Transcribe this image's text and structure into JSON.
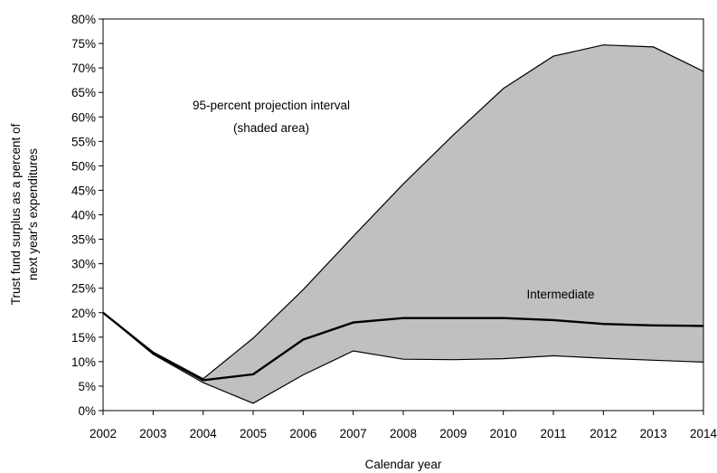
{
  "chart_data": {
    "type": "area",
    "title": "",
    "xlabel": "Calendar year",
    "ylabel_line1": "Trust fund surplus as a percent of",
    "ylabel_line2": "next year's expenditures",
    "x": [
      2002,
      2003,
      2004,
      2005,
      2006,
      2007,
      2008,
      2009,
      2010,
      2011,
      2012,
      2013,
      2014
    ],
    "xlim": [
      2002,
      2014
    ],
    "ylim": [
      0,
      80
    ],
    "y_ticks": [
      0,
      5,
      10,
      15,
      20,
      25,
      30,
      35,
      40,
      45,
      50,
      55,
      60,
      65,
      70,
      75,
      80
    ],
    "y_tick_suffix": "%",
    "grid": false,
    "interval_fill_color": "#c0c0c0",
    "plot_background": "#ffffff",
    "line_color": "#000000",
    "series": [
      {
        "role": "upper-bound",
        "values": [
          20,
          12,
          6.5,
          14.8,
          24.7,
          35.6,
          46.3,
          56.3,
          65.8,
          72.4,
          74.7,
          74.3,
          69.3
        ]
      },
      {
        "name": "Intermediate",
        "role": "intermediate",
        "values": [
          20,
          11.8,
          6.2,
          7.4,
          14.5,
          18.0,
          18.9,
          18.9,
          18.9,
          18.5,
          17.7,
          17.4,
          17.3
        ]
      },
      {
        "role": "lower-bound",
        "values": [
          20,
          11.5,
          5.7,
          1.5,
          7.3,
          12.2,
          10.5,
          10.4,
          10.6,
          11.2,
          10.7,
          10.3,
          9.9
        ]
      }
    ],
    "annotations": {
      "interval_line1": "95-percent projection interval",
      "interval_line2": "(shaded area)",
      "intermediate_label": "Intermediate"
    }
  }
}
